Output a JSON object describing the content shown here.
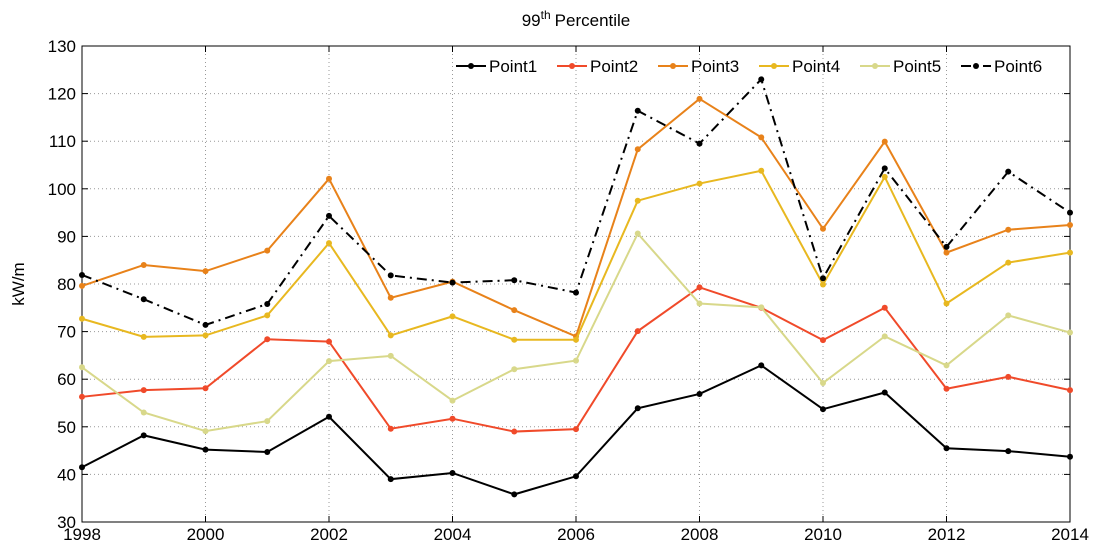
{
  "chart_data": {
    "type": "line",
    "title_parts": [
      "99",
      "th",
      "Percentile"
    ],
    "ylabel": "kW/m",
    "x": [
      1998,
      1999,
      2000,
      2001,
      2002,
      2003,
      2004,
      2005,
      2006,
      2007,
      2008,
      2009,
      2010,
      2011,
      2012,
      2013,
      2014
    ],
    "xlim": [
      1998,
      2014
    ],
    "xticks": [
      1998,
      2000,
      2002,
      2004,
      2006,
      2008,
      2010,
      2012,
      2014
    ],
    "ylim": [
      30,
      130
    ],
    "yticks": [
      30,
      40,
      50,
      60,
      70,
      80,
      90,
      100,
      110,
      120,
      130
    ],
    "grid": true,
    "legend": "north-east",
    "series": [
      {
        "name": "Point1",
        "color": "#000000",
        "dash": "solid",
        "values": [
          41.5,
          48.2,
          45.2,
          44.7,
          52.1,
          39,
          40.3,
          35.8,
          39.6,
          53.9,
          56.9,
          62.9,
          53.7,
          57.2,
          45.5,
          44.9,
          43.7
        ]
      },
      {
        "name": "Point2",
        "color": "#f04a2a",
        "dash": "solid",
        "values": [
          56.3,
          57.7,
          58.1,
          68.4,
          67.9,
          49.6,
          51.7,
          49,
          49.5,
          70.1,
          79.3,
          75,
          68.2,
          75,
          58,
          60.5,
          57.7
        ]
      },
      {
        "name": "Point3",
        "color": "#e8821a",
        "dash": "solid",
        "values": [
          79.6,
          84,
          82.7,
          87,
          102.1,
          77.1,
          80.5,
          74.5,
          69,
          108.3,
          118.9,
          110.8,
          91.6,
          109.9,
          86.6,
          91.4,
          92.4
        ]
      },
      {
        "name": "Point4",
        "color": "#e8b820",
        "dash": "solid",
        "values": [
          72.7,
          68.9,
          69.2,
          73.4,
          88.6,
          69.2,
          73.2,
          68.3,
          68.3,
          97.5,
          101.1,
          103.8,
          79.9,
          102.5,
          75.9,
          84.5,
          86.6
        ]
      },
      {
        "name": "Point5",
        "color": "#d8d88a",
        "dash": "solid",
        "values": [
          62.5,
          53,
          49.1,
          51.2,
          63.8,
          64.9,
          55.5,
          62.1,
          63.9,
          90.6,
          75.9,
          75.1,
          59.2,
          69,
          62.9,
          73.4,
          69.8
        ]
      },
      {
        "name": "Point6",
        "color": "#000000",
        "dash": "dashdot",
        "values": [
          81.9,
          76.8,
          71.4,
          75.8,
          94.3,
          81.8,
          80.3,
          80.8,
          78.2,
          116.4,
          109.5,
          123,
          81.2,
          104.3,
          87.8,
          103.6,
          95
        ]
      }
    ]
  }
}
